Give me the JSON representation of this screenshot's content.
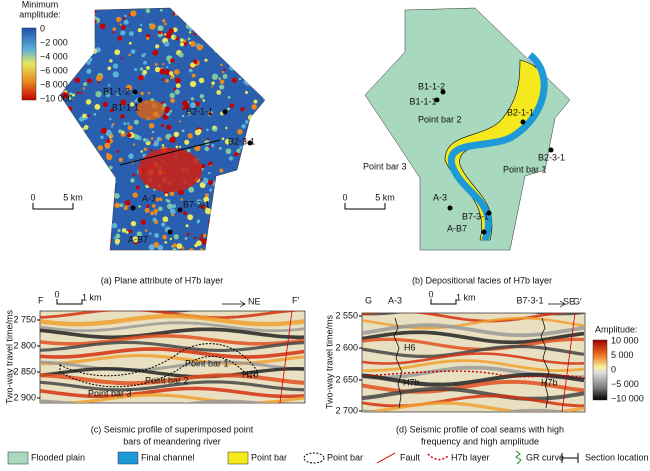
{
  "panel_a": {
    "colorbar_title": [
      "Minimum",
      "amplitude:"
    ],
    "colorbar_labels": [
      "0",
      "−2 000",
      "−4 000",
      "−6 000",
      "−8 000",
      "−10 000"
    ],
    "wells": [
      "B1-1-2",
      "B1-1-1",
      "B2-1-1",
      "B2-3-1",
      "A-3",
      "B7-3-1",
      "A-B7"
    ],
    "scale": [
      "0",
      "5 km"
    ],
    "caption": "(a) Plane attribute of H7b layer"
  },
  "panel_b": {
    "wells": [
      "B1-1-2",
      "B1-1-1",
      "B2-1-1",
      "B2-3-1",
      "A-3",
      "B7-3-1",
      "A-B7"
    ],
    "bars": [
      "Point bar 2",
      "Point bar 3",
      "Point bar 1"
    ],
    "scale": [
      "0",
      "5 km"
    ],
    "caption": "(b) Depositional facies of H7b layer"
  },
  "panel_c": {
    "ends": [
      "F",
      "F′"
    ],
    "scale": [
      "0",
      "1 km"
    ],
    "direction": "NE",
    "y_label": "Two-way travel time/ms",
    "yticks": [
      "2 750",
      "2 800",
      "2 850",
      "2 900"
    ],
    "labels": [
      "Point bar 1",
      "Point bar 2",
      "Point bar 3",
      "H7b"
    ],
    "caption": [
      "(c) Seismic profile of superimposed point",
      "bars of meandering river"
    ]
  },
  "panel_d": {
    "ends": [
      "G",
      "G′"
    ],
    "wells": [
      "A-3",
      "B7-3-1"
    ],
    "scale": [
      "0",
      "1 km"
    ],
    "direction": "SE",
    "y_label": "Two-way travel time/ms",
    "yticks": [
      "2 550",
      "2 600",
      "2 650",
      "2 700"
    ],
    "labels": [
      "H6",
      "H7b",
      "H7b"
    ],
    "colorbar_title": "Amplitude:",
    "colorbar_labels": [
      "10 000",
      "5 000",
      "0",
      "−5 000",
      "−10 000"
    ],
    "caption": [
      "(d) Seismic profile of coal seams with high",
      "frequency and high amplitude"
    ]
  },
  "legend": [
    "Flooded plain",
    "Final channel",
    "Point bar",
    "Point bar",
    "Fault",
    "H7b layer",
    "GR curve",
    "Section location"
  ]
}
